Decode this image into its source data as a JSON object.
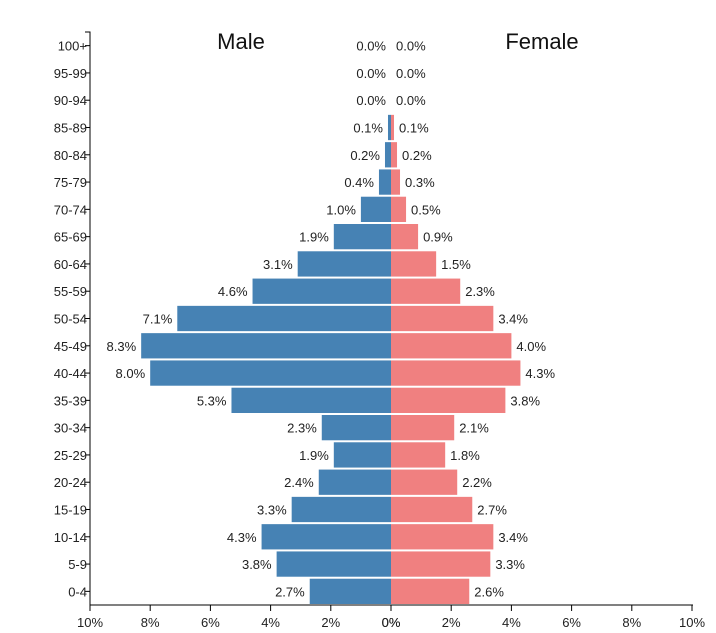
{
  "chart_data": {
    "type": "bar",
    "orientation": "horizontal-pyramid",
    "title_left": "Male",
    "title_right": "Female",
    "categories": [
      "100+",
      "95-99",
      "90-94",
      "85-89",
      "80-84",
      "75-79",
      "70-74",
      "65-69",
      "60-64",
      "55-59",
      "50-54",
      "45-49",
      "40-44",
      "35-39",
      "30-34",
      "25-29",
      "20-24",
      "15-19",
      "10-14",
      "5-9",
      "0-4"
    ],
    "series": [
      {
        "name": "Male",
        "color": "#4682b4",
        "values": [
          0.0,
          0.0,
          0.0,
          0.1,
          0.2,
          0.4,
          1.0,
          1.9,
          3.1,
          4.6,
          7.1,
          8.3,
          8.0,
          5.3,
          2.3,
          1.9,
          2.4,
          3.3,
          4.3,
          3.8,
          2.7
        ],
        "labels": [
          "0.0%",
          "0.0%",
          "0.0%",
          "0.1%",
          "0.2%",
          "0.4%",
          "1.0%",
          "1.9%",
          "3.1%",
          "4.6%",
          "7.1%",
          "8.3%",
          "8.0%",
          "5.3%",
          "2.3%",
          "1.9%",
          "2.4%",
          "3.3%",
          "4.3%",
          "3.8%",
          "2.7%"
        ]
      },
      {
        "name": "Female",
        "color": "#f08080",
        "values": [
          0.0,
          0.0,
          0.0,
          0.1,
          0.2,
          0.3,
          0.5,
          0.9,
          1.5,
          2.3,
          3.4,
          4.0,
          4.3,
          3.8,
          2.1,
          1.8,
          2.2,
          2.7,
          3.4,
          3.3,
          2.6
        ],
        "labels": [
          "0.0%",
          "0.0%",
          "0.0%",
          "0.1%",
          "0.2%",
          "0.3%",
          "0.5%",
          "0.9%",
          "1.5%",
          "2.3%",
          "3.4%",
          "4.0%",
          "4.3%",
          "3.8%",
          "2.1%",
          "1.8%",
          "2.2%",
          "2.7%",
          "3.4%",
          "3.3%",
          "2.6%"
        ]
      }
    ],
    "x_ticks_left": [
      "10%",
      "8%",
      "6%",
      "4%",
      "2%",
      "0%"
    ],
    "x_ticks_right": [
      "0%",
      "2%",
      "4%",
      "6%",
      "8%",
      "10%"
    ],
    "x_tick_values": [
      10,
      8,
      6,
      4,
      2,
      0
    ],
    "xlim": [
      0,
      10
    ],
    "grid": false,
    "legend": "none"
  }
}
